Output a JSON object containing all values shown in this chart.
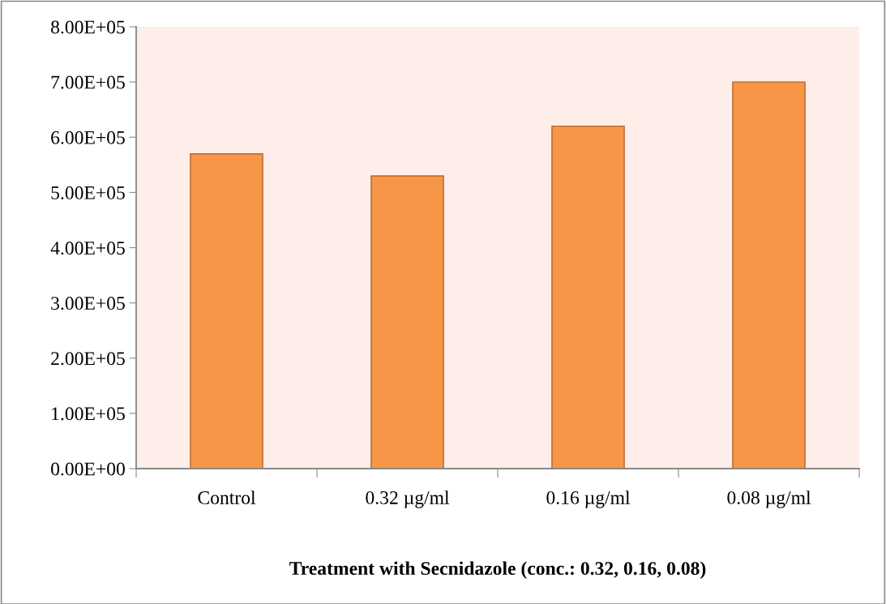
{
  "chart_data": {
    "type": "bar",
    "xlabel": "Treatment with Secnidazole (conc.: 0.32, 0.16, 0.08)",
    "categories": [
      "Control",
      "0.32 µg/ml",
      "0.16 µg/ml",
      "0.08 µg/ml"
    ],
    "values": [
      570000,
      530000,
      620000,
      700000
    ],
    "color": "#f79646",
    "ylim": [
      0,
      800000
    ],
    "yticks": [
      {
        "value": 0,
        "label": "0.00E+00"
      },
      {
        "value": 100000,
        "label": "1.00E+05"
      },
      {
        "value": 200000,
        "label": "2.00E+05"
      },
      {
        "value": 300000,
        "label": "3.00E+05"
      },
      {
        "value": 400000,
        "label": "4.00E+05"
      },
      {
        "value": 500000,
        "label": "5.00E+05"
      },
      {
        "value": 600000,
        "label": "6.00E+05"
      },
      {
        "value": 700000,
        "label": "7.00E+05"
      },
      {
        "value": 800000,
        "label": "8.00E+05"
      }
    ],
    "grid": false
  }
}
